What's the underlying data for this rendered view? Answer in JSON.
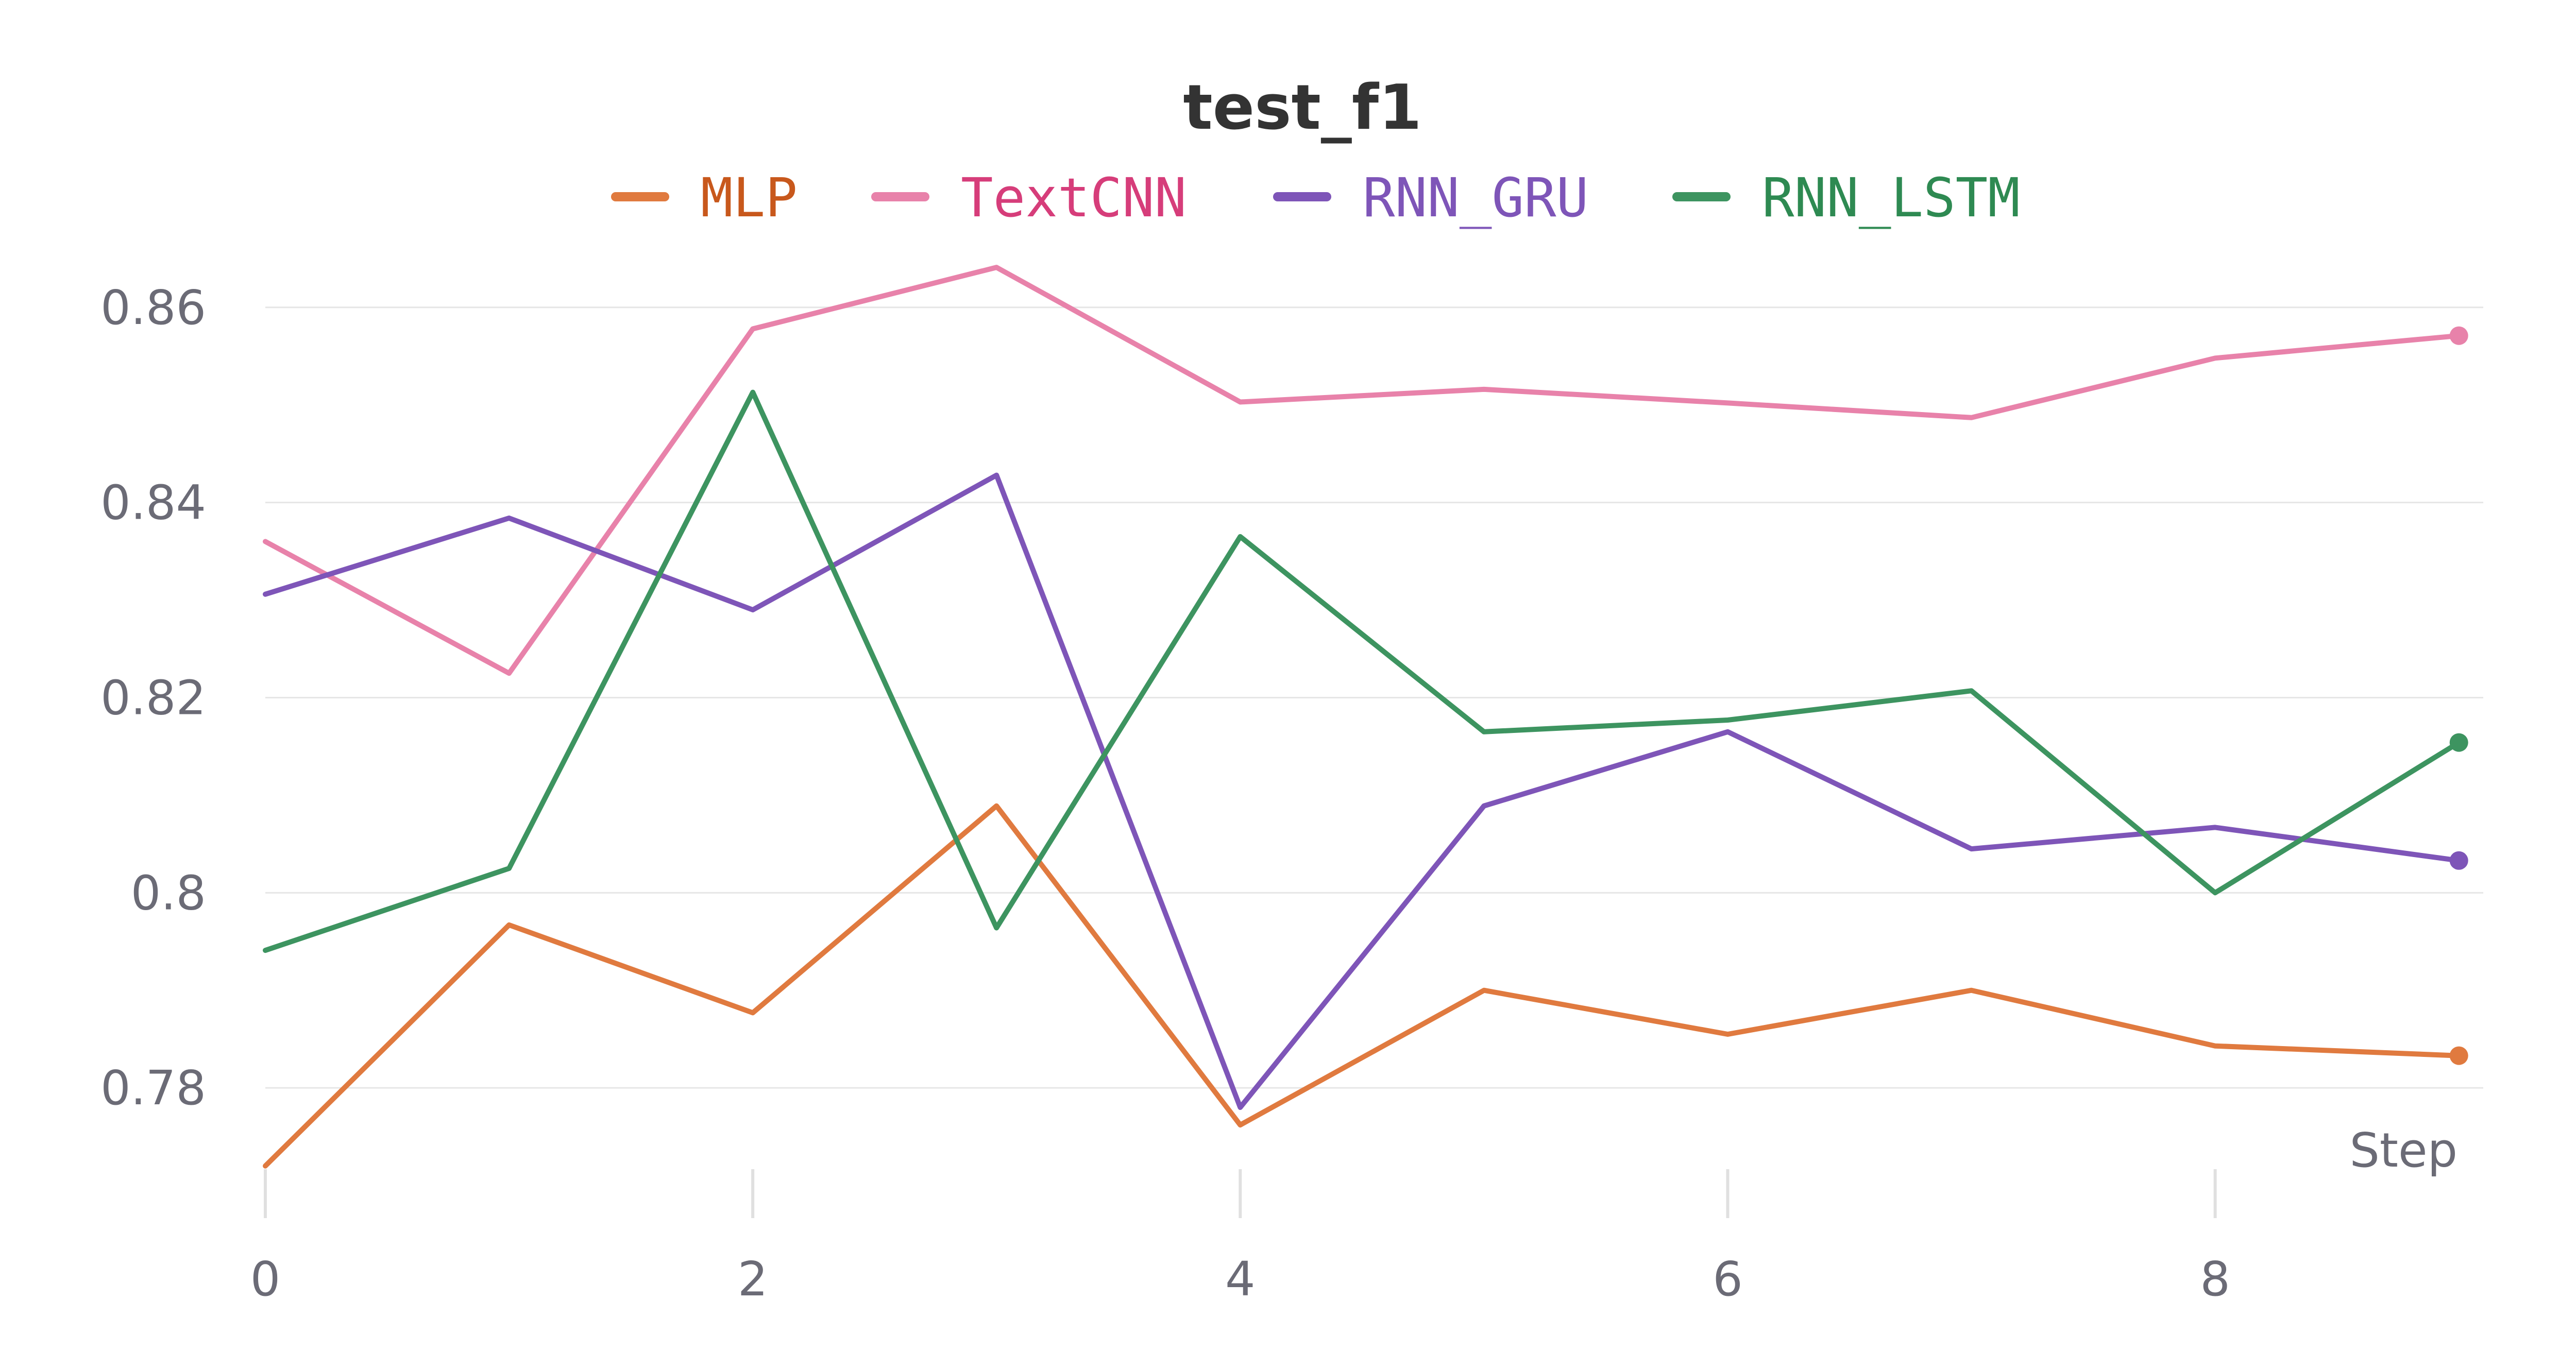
{
  "chart_data": {
    "type": "line",
    "title": "test_f1",
    "xlabel": "Step",
    "ylabel": "",
    "x": [
      0,
      1,
      2,
      3,
      4,
      5,
      6,
      7,
      8,
      9
    ],
    "xlim": [
      0,
      9.1
    ],
    "ylim": [
      0.7685,
      0.8725
    ],
    "x_ticks": [
      0,
      2,
      4,
      6,
      8
    ],
    "x_tick_labels": [
      "0",
      "2",
      "4",
      "6",
      "8"
    ],
    "y_ticks": [
      0.78,
      0.8,
      0.82,
      0.84,
      0.86
    ],
    "y_tick_labels": [
      "0.78",
      "0.8",
      "0.82",
      "0.84",
      "0.86"
    ],
    "grid": "horizontal",
    "legend_position": "top-center",
    "series": [
      {
        "name": "MLP",
        "color": "#e07a3f",
        "text_color": "#c8581c",
        "values": [
          0.772,
          0.7967,
          0.7877,
          0.8089,
          0.7762,
          0.79,
          0.7855,
          0.79,
          0.7843,
          0.7833
        ]
      },
      {
        "name": "TextCNN",
        "color": "#e882aa",
        "text_color": "#d63d7a",
        "values": [
          0.836,
          0.8225,
          0.8578,
          0.8641,
          0.8503,
          0.8516,
          0.8502,
          0.8487,
          0.8548,
          0.8571
        ]
      },
      {
        "name": "RNN_GRU",
        "color": "#7e55b8",
        "text_color": "#7e55b8",
        "values": [
          0.8306,
          0.8384,
          0.829,
          0.8428,
          0.778,
          0.8089,
          0.8165,
          0.8045,
          0.8067,
          0.8033
        ]
      },
      {
        "name": "RNN_LSTM",
        "color": "#3d9460",
        "text_color": "#2e8a52",
        "values": [
          0.7941,
          0.8025,
          0.8513,
          0.7964,
          0.8365,
          0.8165,
          0.8177,
          0.8207,
          0.8,
          0.8154
        ]
      }
    ]
  }
}
